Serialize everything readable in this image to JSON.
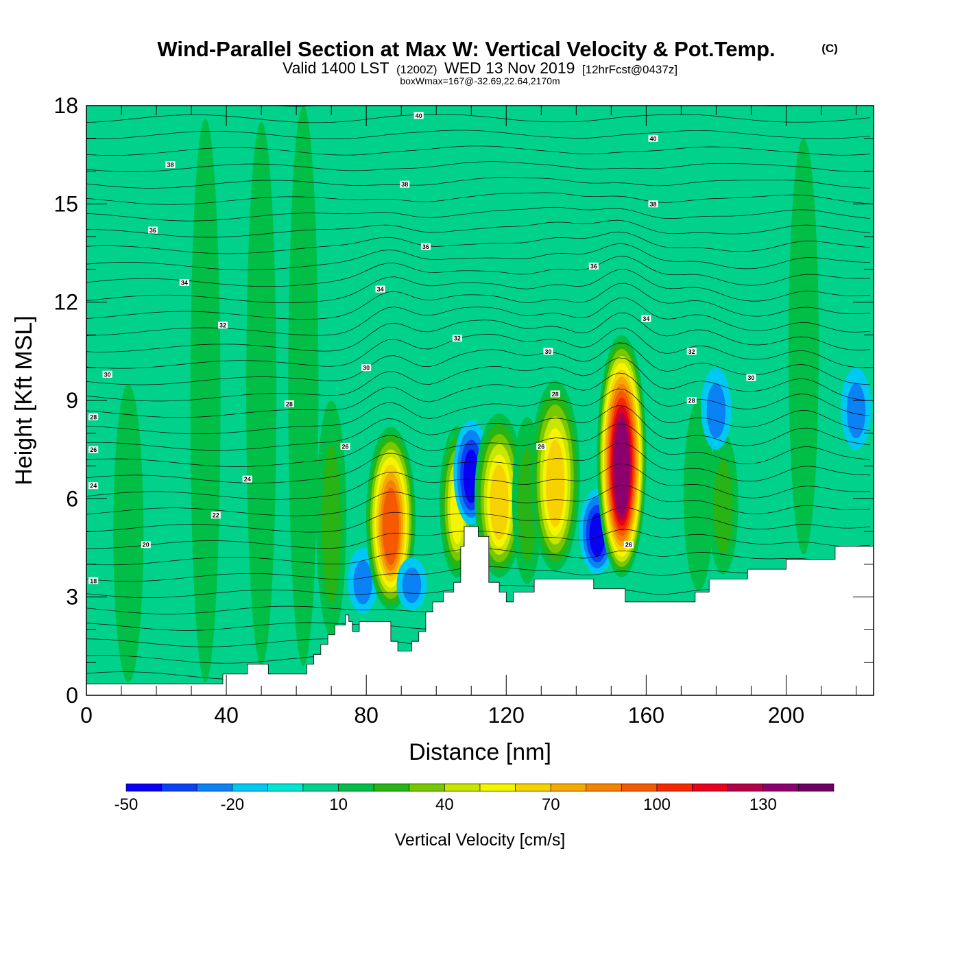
{
  "header": {
    "title": "Wind-Parallel Section at Max W: Vertical Velocity & Pot.Temp.",
    "copyright": "(C)",
    "valid_prefix": "Valid 1400 LST",
    "valid_zulu": "(1200Z)",
    "valid_date": "WED 13 Nov 2019",
    "forecast": "[12hrFcst@0437z]",
    "box_wmax": "boxWmax=167@-32.69,22.64,2170m"
  },
  "chart_data": {
    "type": "heatmap",
    "title": "Wind-Parallel Section at Max W: Vertical Velocity & Pot.Temp.",
    "xlabel": "Distance [nm]",
    "ylabel": "Height [Kft MSL]",
    "xlim": [
      0,
      225
    ],
    "ylim": [
      0,
      18
    ],
    "x_ticks": [
      0,
      40,
      80,
      120,
      160,
      200
    ],
    "x_tick_labels": [
      "0",
      "40",
      "80",
      "120",
      "160",
      "200"
    ],
    "y_ticks": [
      0,
      3,
      6,
      9,
      12,
      15,
      18
    ],
    "y_tick_labels": [
      "0",
      "3",
      "6",
      "9",
      "12",
      "15",
      "18"
    ],
    "terrain": [
      [
        0,
        0.35
      ],
      [
        39,
        0.35
      ],
      [
        39,
        0.65
      ],
      [
        46,
        0.65
      ],
      [
        46,
        0.95
      ],
      [
        52,
        0.95
      ],
      [
        52,
        0.65
      ],
      [
        63,
        0.65
      ],
      [
        63,
        0.95
      ],
      [
        65,
        0.95
      ],
      [
        65,
        1.25
      ],
      [
        67,
        1.25
      ],
      [
        67,
        1.55
      ],
      [
        69,
        1.55
      ],
      [
        69,
        1.85
      ],
      [
        71,
        1.85
      ],
      [
        71,
        2.15
      ],
      [
        74,
        2.15
      ],
      [
        74,
        2.45
      ],
      [
        75,
        2.45
      ],
      [
        75,
        2.25
      ],
      [
        76,
        2.25
      ],
      [
        76,
        1.95
      ],
      [
        78,
        1.95
      ],
      [
        78,
        2.25
      ],
      [
        87,
        2.25
      ],
      [
        87,
        1.65
      ],
      [
        89,
        1.65
      ],
      [
        89,
        1.35
      ],
      [
        93,
        1.35
      ],
      [
        93,
        1.65
      ],
      [
        95,
        1.65
      ],
      [
        95,
        1.95
      ],
      [
        97,
        1.95
      ],
      [
        97,
        2.55
      ],
      [
        99,
        2.55
      ],
      [
        99,
        2.85
      ],
      [
        102,
        2.85
      ],
      [
        102,
        3.15
      ],
      [
        105,
        3.15
      ],
      [
        105,
        3.45
      ],
      [
        107,
        3.45
      ],
      [
        107,
        4.55
      ],
      [
        108,
        4.55
      ],
      [
        108,
        5.15
      ],
      [
        112,
        5.15
      ],
      [
        112,
        4.85
      ],
      [
        115,
        4.85
      ],
      [
        115,
        3.45
      ],
      [
        118,
        3.45
      ],
      [
        118,
        3.15
      ],
      [
        120,
        3.15
      ],
      [
        120,
        2.85
      ],
      [
        122,
        2.85
      ],
      [
        122,
        3.15
      ],
      [
        128,
        3.15
      ],
      [
        128,
        3.55
      ],
      [
        145,
        3.55
      ],
      [
        145,
        3.25
      ],
      [
        154,
        3.25
      ],
      [
        154,
        2.85
      ],
      [
        174,
        2.85
      ],
      [
        174,
        3.15
      ],
      [
        178,
        3.15
      ],
      [
        178,
        3.55
      ],
      [
        189,
        3.55
      ],
      [
        189,
        3.85
      ],
      [
        200,
        3.85
      ],
      [
        200,
        4.15
      ],
      [
        214,
        4.15
      ],
      [
        214,
        4.55
      ],
      [
        225,
        4.55
      ]
    ],
    "field": {
      "background_value": 0,
      "vertical_structures": [
        {
          "x": 34,
          "y_bottom": 0.4,
          "y_top": 17.6,
          "value": 10
        },
        {
          "x": 12,
          "y_bottom": 0.4,
          "y_top": 9.5,
          "value": 10
        },
        {
          "x": 50,
          "y_bottom": 0.9,
          "y_top": 17.5,
          "value": 10
        },
        {
          "x": 62,
          "y_bottom": 0.9,
          "y_top": 18,
          "value": 10
        },
        {
          "x": 70,
          "y_bottom": 1.8,
          "y_top": 9.0,
          "value": 20
        },
        {
          "x": 79,
          "y_bottom": 2.5,
          "y_top": 4.5,
          "value": -20
        },
        {
          "x": 87,
          "y_bottom": 2.6,
          "y_top": 8.2,
          "value": 90
        },
        {
          "x": 93,
          "y_bottom": 2.6,
          "y_top": 4.2,
          "value": -20
        },
        {
          "x": 106,
          "y_bottom": 3.6,
          "y_top": 8.2,
          "value": 50
        },
        {
          "x": 110,
          "y_bottom": 5.2,
          "y_top": 8.4,
          "value": -40
        },
        {
          "x": 118,
          "y_bottom": 3.6,
          "y_top": 8.6,
          "value": 60
        },
        {
          "x": 126,
          "y_bottom": 3.4,
          "y_top": 8.5,
          "value": 20
        },
        {
          "x": 134,
          "y_bottom": 3.8,
          "y_top": 9.6,
          "value": 60
        },
        {
          "x": 146,
          "y_bottom": 3.7,
          "y_top": 6.3,
          "value": -40
        },
        {
          "x": 153,
          "y_bottom": 3.6,
          "y_top": 11.0,
          "value": 130
        },
        {
          "x": 175,
          "y_bottom": 3.2,
          "y_top": 9.0,
          "value": 10
        },
        {
          "x": 182,
          "y_bottom": 3.7,
          "y_top": 8.0,
          "value": 20
        },
        {
          "x": 205,
          "y_bottom": 4.3,
          "y_top": 17.0,
          "value": 10
        },
        {
          "x": 180,
          "y_bottom": 7.5,
          "y_top": 10.0,
          "value": -20
        },
        {
          "x": 220,
          "y_bottom": 7.5,
          "y_top": 10.0,
          "value": -20
        }
      ]
    },
    "contours": {
      "variable": "Potential Temperature",
      "labels": [
        {
          "text": "18",
          "x": 2,
          "y": 3.5
        },
        {
          "text": "20",
          "x": 17,
          "y": 4.6
        },
        {
          "text": "22",
          "x": 37,
          "y": 5.5
        },
        {
          "text": "24",
          "x": 2,
          "y": 6.4
        },
        {
          "text": "24",
          "x": 46,
          "y": 6.6
        },
        {
          "text": "26",
          "x": 2,
          "y": 7.5
        },
        {
          "text": "26",
          "x": 74,
          "y": 7.6
        },
        {
          "text": "28",
          "x": 2,
          "y": 8.5
        },
        {
          "text": "28",
          "x": 58,
          "y": 8.9
        },
        {
          "text": "26",
          "x": 130,
          "y": 7.6
        },
        {
          "text": "28",
          "x": 134,
          "y": 9.2
        },
        {
          "text": "28",
          "x": 173,
          "y": 9.0
        },
        {
          "text": "26",
          "x": 155,
          "y": 4.6
        },
        {
          "text": "30",
          "x": 6,
          "y": 9.8
        },
        {
          "text": "30",
          "x": 80,
          "y": 10.0
        },
        {
          "text": "30",
          "x": 132,
          "y": 10.5
        },
        {
          "text": "30",
          "x": 190,
          "y": 9.7
        },
        {
          "text": "32",
          "x": 39,
          "y": 11.3
        },
        {
          "text": "32",
          "x": 106,
          "y": 10.9
        },
        {
          "text": "32",
          "x": 173,
          "y": 10.5
        },
        {
          "text": "34",
          "x": 28,
          "y": 12.6
        },
        {
          "text": "34",
          "x": 84,
          "y": 12.4
        },
        {
          "text": "34",
          "x": 160,
          "y": 11.5
        },
        {
          "text": "36",
          "x": 19,
          "y": 14.2
        },
        {
          "text": "36",
          "x": 97,
          "y": 13.7
        },
        {
          "text": "36",
          "x": 145,
          "y": 13.1
        },
        {
          "text": "38",
          "x": 24,
          "y": 16.2
        },
        {
          "text": "38",
          "x": 91,
          "y": 15.6
        },
        {
          "text": "38",
          "x": 162,
          "y": 15.0
        },
        {
          "text": "40",
          "x": 95,
          "y": 17.7
        },
        {
          "text": "40",
          "x": 162,
          "y": 17.0
        }
      ]
    },
    "colorbar": {
      "title": "Vertical Velocity [cm/s]",
      "min": -50,
      "max": 150,
      "step": 10,
      "labels": [
        "-50",
        "-20",
        "10",
        "40",
        "70",
        "100",
        "130"
      ],
      "label_values": [
        -50,
        -20,
        10,
        40,
        70,
        100,
        130
      ],
      "colors": [
        "#0a00f5",
        "#0a41f5",
        "#0a82f5",
        "#00c8f5",
        "#00e6d2",
        "#00d28c",
        "#00be46",
        "#28b414",
        "#78c800",
        "#c8e600",
        "#f5f500",
        "#f5d200",
        "#f5aa00",
        "#f58200",
        "#f55a00",
        "#f52800",
        "#e6001e",
        "#b40046",
        "#8c006e",
        "#6e0064"
      ]
    }
  }
}
